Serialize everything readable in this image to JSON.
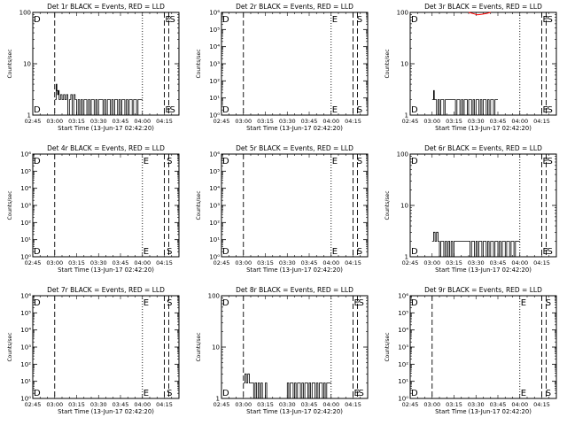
{
  "colors": {
    "events": "#000000",
    "lld": "#ff0000",
    "background": "#ffffff"
  },
  "x_ticks": [
    {
      "t": 0,
      "label": "02:45"
    },
    {
      "t": 15,
      "label": "03:00"
    },
    {
      "t": 30,
      "label": "03:15"
    },
    {
      "t": 45,
      "label": "03:30"
    },
    {
      "t": 60,
      "label": "03:45"
    },
    {
      "t": 75,
      "label": "04:00"
    },
    {
      "t": 90,
      "label": "04:15"
    }
  ],
  "x_range_minutes": [
    0,
    100
  ],
  "chart_data": [
    {
      "type": "line",
      "title": "Det 1r BLACK = Events, RED = LLD",
      "xlabel": "Start Time (13-Jun-17 02:42:20)",
      "ylabel": "Counts/sec",
      "yscale": "log",
      "ylim": [
        1,
        100
      ],
      "y_ticks": [
        {
          "v": 1,
          "label": "1"
        },
        {
          "v": 10,
          "label": "10"
        },
        {
          "v": 100,
          "label": "100"
        }
      ],
      "vlines_dashed": [
        15,
        90,
        93
      ],
      "vlines_dotted": [
        75
      ],
      "markers": [
        {
          "t": 0,
          "text": "D"
        },
        {
          "t": 90,
          "text": "E"
        },
        {
          "t": 93,
          "text": "S"
        }
      ],
      "events": {
        "x": [
          15,
          16,
          16.5,
          17,
          17.5,
          18,
          19,
          20,
          21,
          22,
          23,
          24,
          25,
          26,
          27,
          28,
          29,
          30,
          31,
          32,
          33,
          34,
          35,
          36,
          37,
          38,
          39,
          40,
          41,
          42,
          43,
          44,
          45,
          46,
          47,
          48,
          49,
          50,
          51,
          52,
          53,
          54,
          55,
          56,
          57,
          58,
          59,
          60,
          61,
          62,
          63,
          64,
          65,
          66,
          67,
          68,
          69,
          70,
          71,
          72,
          73,
          74,
          75
        ],
        "y": [
          2,
          4,
          3,
          2.5,
          3,
          2,
          2.5,
          2,
          2.5,
          2,
          2.5,
          1,
          2,
          2.5,
          1,
          2.5,
          2,
          1,
          2,
          1,
          2,
          1,
          2,
          2,
          1,
          2,
          1,
          2,
          2,
          1,
          2,
          1,
          2,
          2,
          2,
          1,
          2,
          1,
          2,
          2,
          1,
          2,
          1,
          2,
          2,
          1,
          2,
          1,
          2,
          2,
          1,
          2,
          1,
          2,
          2,
          1,
          2,
          2,
          1,
          2,
          2,
          2,
          2
        ]
      },
      "lld": null
    },
    {
      "type": "line",
      "title": "Det 2r BLACK = Events, RED = LLD",
      "xlabel": "Start Time (13-Jun-17 02:42:20)",
      "ylabel": "Counts/sec",
      "yscale": "log",
      "ylim": [
        1,
        1000000
      ],
      "y_ticks": [
        {
          "v": 1,
          "label": "10⁰"
        },
        {
          "v": 10,
          "label": "10¹"
        },
        {
          "v": 100,
          "label": "10²"
        },
        {
          "v": 1000,
          "label": "10³"
        },
        {
          "v": 10000,
          "label": "10⁴"
        },
        {
          "v": 100000,
          "label": "10⁵"
        },
        {
          "v": 1000000,
          "label": "10⁶"
        }
      ],
      "vlines_dashed": [
        15,
        90,
        93
      ],
      "vlines_dotted": [
        75
      ],
      "markers": [
        {
          "t": 0,
          "text": "D"
        },
        {
          "t": 75,
          "text": "E"
        },
        {
          "t": 92,
          "text": "S"
        }
      ],
      "events": null,
      "lld": null
    },
    {
      "type": "line",
      "title": "Det 3r BLACK = Events, RED = LLD",
      "xlabel": "Start Time (13-Jun-17 02:42:20)",
      "ylabel": "Counts/sec",
      "yscale": "log",
      "ylim": [
        1,
        100
      ],
      "y_ticks": [
        {
          "v": 1,
          "label": "1"
        },
        {
          "v": 10,
          "label": "10"
        },
        {
          "v": 100,
          "label": "100"
        }
      ],
      "vlines_dashed": [
        90,
        93
      ],
      "vlines_dotted": [
        75
      ],
      "markers": [
        {
          "t": 0,
          "text": "D"
        },
        {
          "t": 90,
          "text": "E"
        },
        {
          "t": 93,
          "text": "S"
        }
      ],
      "events": {
        "x": [
          15,
          16,
          16.5,
          17,
          18,
          19,
          20,
          21,
          22,
          23,
          24,
          30,
          31,
          32,
          33,
          34,
          35,
          36,
          37,
          38,
          39,
          40,
          41,
          42,
          43,
          44,
          45,
          46,
          47,
          48,
          49,
          50,
          51,
          52,
          53,
          54,
          55,
          56,
          57,
          58,
          59,
          60
        ],
        "y": [
          2,
          3,
          2,
          2,
          1,
          2,
          1,
          2,
          2,
          1,
          2,
          2,
          1,
          2,
          2,
          1,
          2,
          1,
          2,
          2,
          1,
          2,
          2,
          1,
          2,
          1,
          2,
          2,
          1,
          2,
          1,
          2,
          2,
          1,
          2,
          1,
          2,
          2,
          1,
          2,
          2,
          2
        ]
      },
      "lld": {
        "x": [
          40,
          43,
          46,
          49,
          52,
          55
        ],
        "y": [
          100,
          95,
          90,
          92,
          95,
          100
        ]
      }
    },
    {
      "type": "line",
      "title": "Det 4r BLACK = Events, RED = LLD",
      "xlabel": "Start Time (13-Jun-17 02:42:20)",
      "ylabel": "Counts/sec",
      "yscale": "log",
      "ylim": [
        1,
        1000000
      ],
      "y_ticks": [
        {
          "v": 1,
          "label": "10⁰"
        },
        {
          "v": 10,
          "label": "10¹"
        },
        {
          "v": 100,
          "label": "10²"
        },
        {
          "v": 1000,
          "label": "10³"
        },
        {
          "v": 10000,
          "label": "10⁴"
        },
        {
          "v": 100000,
          "label": "10⁵"
        },
        {
          "v": 1000000,
          "label": "10⁶"
        }
      ],
      "vlines_dashed": [
        15,
        90,
        93
      ],
      "vlines_dotted": [
        75
      ],
      "markers": [
        {
          "t": 0,
          "text": "D"
        },
        {
          "t": 75,
          "text": "E"
        },
        {
          "t": 91,
          "text": "S"
        }
      ],
      "events": null,
      "lld": null
    },
    {
      "type": "line",
      "title": "Det 5r BLACK = Events, RED = LLD",
      "xlabel": "Start Time (13-Jun-17 02:42:20)",
      "ylabel": "Counts/sec",
      "yscale": "log",
      "ylim": [
        1,
        1000000
      ],
      "y_ticks": [
        {
          "v": 1,
          "label": "10⁰"
        },
        {
          "v": 10,
          "label": "10¹"
        },
        {
          "v": 100,
          "label": "10²"
        },
        {
          "v": 1000,
          "label": "10³"
        },
        {
          "v": 10000,
          "label": "10⁴"
        },
        {
          "v": 100000,
          "label": "10⁵"
        },
        {
          "v": 1000000,
          "label": "10⁶"
        }
      ],
      "vlines_dashed": [
        15,
        90,
        93
      ],
      "vlines_dotted": [
        75
      ],
      "markers": [
        {
          "t": 0,
          "text": "D"
        },
        {
          "t": 75,
          "text": "E"
        },
        {
          "t": 92,
          "text": "S"
        }
      ],
      "events": null,
      "lld": null
    },
    {
      "type": "line",
      "title": "Det 6r BLACK = Events, RED = LLD",
      "xlabel": "Start Time (13-Jun-17 02:42:20)",
      "ylabel": "Counts/sec",
      "yscale": "log",
      "ylim": [
        1,
        100
      ],
      "y_ticks": [
        {
          "v": 1,
          "label": "1"
        },
        {
          "v": 10,
          "label": "10"
        },
        {
          "v": 100,
          "label": "100"
        }
      ],
      "vlines_dashed": [
        90,
        93
      ],
      "vlines_dotted": [
        75
      ],
      "markers": [
        {
          "t": 0,
          "text": "D"
        },
        {
          "t": 90,
          "text": "E"
        },
        {
          "t": 93,
          "text": "S"
        }
      ],
      "events": {
        "x": [
          15,
          16,
          17,
          18,
          19,
          20,
          21,
          22,
          23,
          24,
          25,
          26,
          27,
          28,
          29,
          30,
          40,
          41,
          42,
          43,
          44,
          45,
          46,
          47,
          48,
          49,
          50,
          51,
          52,
          53,
          54,
          55,
          56,
          57,
          58,
          59,
          60,
          61,
          62,
          63,
          64,
          65,
          66,
          67,
          68,
          69,
          70,
          71,
          72,
          73,
          74,
          75
        ],
        "y": [
          2,
          3,
          2,
          3,
          2,
          1,
          2,
          2,
          1,
          2,
          1,
          2,
          1,
          2,
          1,
          2,
          2,
          1,
          2,
          2,
          1,
          2,
          1,
          2,
          2,
          1,
          2,
          2,
          1,
          2,
          1,
          2,
          2,
          1,
          2,
          2,
          1,
          2,
          1,
          2,
          2,
          1,
          2,
          2,
          1,
          2,
          2,
          1,
          2,
          2,
          2,
          2
        ]
      },
      "lld": null
    },
    {
      "type": "line",
      "title": "Det 7r BLACK = Events, RED = LLD",
      "xlabel": "Start Time (13-Jun-17 02:42:20)",
      "ylabel": "Counts/sec",
      "yscale": "log",
      "ylim": [
        1,
        1000000
      ],
      "y_ticks": [
        {
          "v": 1,
          "label": "10⁰"
        },
        {
          "v": 10,
          "label": "10¹"
        },
        {
          "v": 100,
          "label": "10²"
        },
        {
          "v": 1000,
          "label": "10³"
        },
        {
          "v": 10000,
          "label": "10⁴"
        },
        {
          "v": 100000,
          "label": "10⁵"
        },
        {
          "v": 1000000,
          "label": "10⁶"
        }
      ],
      "vlines_dashed": [
        15,
        90,
        93
      ],
      "vlines_dotted": [
        75
      ],
      "markers": [
        {
          "t": 0,
          "text": "D"
        },
        {
          "t": 75,
          "text": "E"
        },
        {
          "t": 91,
          "text": "S"
        }
      ],
      "events": null,
      "lld": null
    },
    {
      "type": "line",
      "title": "Det 8r BLACK = Events, RED = LLD",
      "xlabel": "Start Time (13-Jun-17 02:42:20)",
      "ylabel": "Counts/sec",
      "yscale": "log",
      "ylim": [
        1,
        100
      ],
      "y_ticks": [
        {
          "v": 1,
          "label": "1"
        },
        {
          "v": 10,
          "label": "10"
        },
        {
          "v": 100,
          "label": "100"
        }
      ],
      "vlines_dashed": [
        15,
        90,
        93
      ],
      "vlines_dotted": [
        75
      ],
      "markers": [
        {
          "t": 0,
          "text": "D"
        },
        {
          "t": 90,
          "text": "E"
        },
        {
          "t": 93,
          "text": "S"
        }
      ],
      "events": {
        "x": [
          15,
          16,
          17,
          18,
          19,
          20,
          21,
          22,
          23,
          24,
          25,
          26,
          27,
          28,
          29,
          30,
          31,
          45,
          46,
          47,
          48,
          49,
          50,
          51,
          52,
          53,
          54,
          55,
          56,
          57,
          58,
          59,
          60,
          61,
          62,
          63,
          64,
          65,
          66,
          67,
          68,
          69,
          70,
          71,
          72,
          73,
          74,
          75
        ],
        "y": [
          2,
          3,
          2,
          3,
          2,
          2,
          2,
          1,
          2,
          1,
          2,
          1,
          2,
          1,
          1,
          2,
          1,
          2,
          1,
          2,
          2,
          1,
          2,
          1,
          2,
          2,
          1,
          2,
          1,
          2,
          2,
          1,
          2,
          1,
          2,
          2,
          1,
          2,
          1,
          2,
          2,
          1,
          2,
          1,
          2,
          2,
          2,
          2
        ]
      },
      "lld": null
    },
    {
      "type": "line",
      "title": "Det 9r BLACK = Events, RED = LLD",
      "xlabel": "Start Time (13-Jun-17 02:42:20)",
      "ylabel": "Counts/sec",
      "yscale": "log",
      "ylim": [
        1,
        1000000
      ],
      "y_ticks": [
        {
          "v": 1,
          "label": "10⁰"
        },
        {
          "v": 10,
          "label": "10¹"
        },
        {
          "v": 100,
          "label": "10²"
        },
        {
          "v": 1000,
          "label": "10³"
        },
        {
          "v": 10000,
          "label": "10⁴"
        },
        {
          "v": 100000,
          "label": "10⁵"
        },
        {
          "v": 1000000,
          "label": "10⁶"
        }
      ],
      "vlines_dashed": [
        15,
        90,
        93
      ],
      "vlines_dotted": [
        75
      ],
      "markers": [
        {
          "t": 0,
          "text": "D"
        },
        {
          "t": 75,
          "text": "E"
        },
        {
          "t": 92,
          "text": "S"
        }
      ],
      "events": null,
      "lld": null
    }
  ]
}
